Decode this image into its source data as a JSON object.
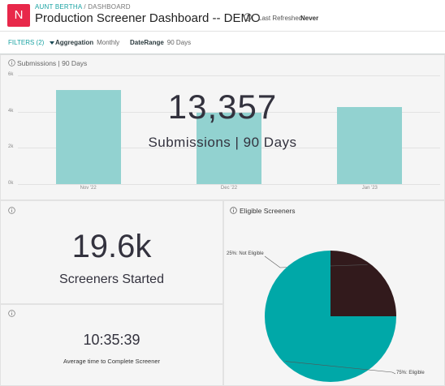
{
  "header": {
    "logo_letter": "N",
    "breadcrumb_org": "AUNT BERTHA",
    "breadcrumb_sep": " / ",
    "breadcrumb_page": "DASHBOARD",
    "title": "Production Screener Dashboard -- DEMO",
    "refresh_label": "Last Refreshed",
    "refresh_value": "Never"
  },
  "filters": {
    "toggle_label": "FILTERS",
    "count": "(2)",
    "items": [
      {
        "name": "Aggregation",
        "value": "Monthly"
      },
      {
        "name": "DateRange",
        "value": "90 Days"
      }
    ]
  },
  "submissions_panel": {
    "title": "Submissions | 90 Days",
    "kpi_value": "13,357",
    "kpi_label": "Submissions | 90 Days"
  },
  "chart_data": {
    "type": "bar",
    "categories": [
      "Nov '22",
      "Dec '22",
      "Jan '23"
    ],
    "values": [
      5200,
      3950,
      4250
    ],
    "y_ticks": [
      "0k",
      "2k",
      "4k",
      "6k"
    ],
    "ylim": [
      0,
      6000
    ],
    "grid": true,
    "colors": {
      "bar": "#92d2d0"
    }
  },
  "screeners_started": {
    "value": "19.6k",
    "label": "Screeners Started"
  },
  "avg_time": {
    "value": "10:35:39",
    "label": "Average time to Complete Screener"
  },
  "eligible_pie": {
    "title": "Eligible Screeners",
    "slices": [
      {
        "label": "25%: Not Eligible",
        "fraction": 0.25,
        "color": "#321a1c"
      },
      {
        "label": "75%: Eligible",
        "fraction": 0.75,
        "color": "#00a8a8"
      }
    ]
  },
  "colors": {
    "brand": "#e8284a",
    "accent": "#1aa3a3"
  }
}
